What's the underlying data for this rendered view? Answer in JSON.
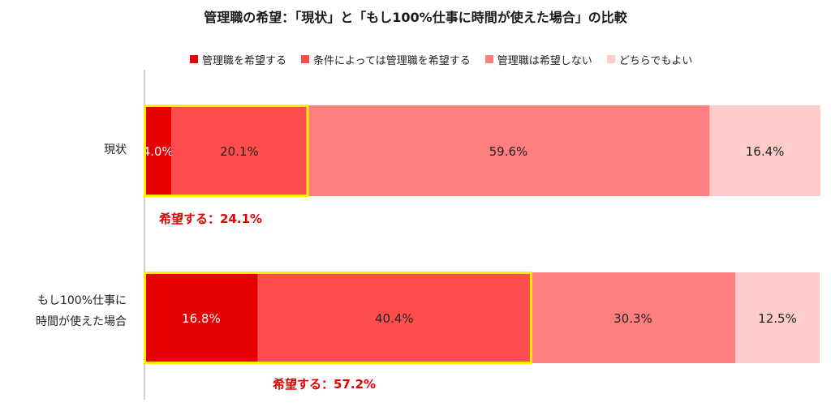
{
  "chart_data": {
    "type": "bar",
    "orientation": "horizontal",
    "stacked": true,
    "title": "管理職の希望：「現状」と「もし100%仕事に時間が使えた場合」の比較",
    "categories": [
      "現状",
      "もし100%仕事に時間が使えた場合"
    ],
    "category_lines": [
      [
        "現状"
      ],
      [
        "もし100%仕事に",
        "時間が使えた場合"
      ]
    ],
    "series": [
      {
        "name": "管理職を希望する",
        "values": [
          4.0,
          16.8
        ],
        "color": "#e60000",
        "label_color": "#ffffff"
      },
      {
        "name": "条件によっては管理職を希望する",
        "values": [
          20.1,
          40.4
        ],
        "color": "#ff4d4d",
        "label_color": "#222222"
      },
      {
        "name": "管理職は希望しない",
        "values": [
          59.6,
          30.3
        ],
        "color": "#ff7f7f",
        "label_color": "#222222"
      },
      {
        "name": "どちらでもよい",
        "values": [
          16.4,
          12.5
        ],
        "color": "#ffcccc",
        "label_color": "#222222"
      }
    ],
    "value_labels": [
      [
        "4.0%",
        "20.1%",
        "59.6%",
        "16.4%"
      ],
      [
        "16.8%",
        "40.4%",
        "30.3%",
        "12.5%"
      ]
    ],
    "xlim": [
      0,
      100
    ],
    "highlight_color": "#ffee00",
    "callouts": [
      "希望する：24.1%",
      "希望する：57.2%"
    ],
    "legend_position": "top",
    "grid": false
  }
}
